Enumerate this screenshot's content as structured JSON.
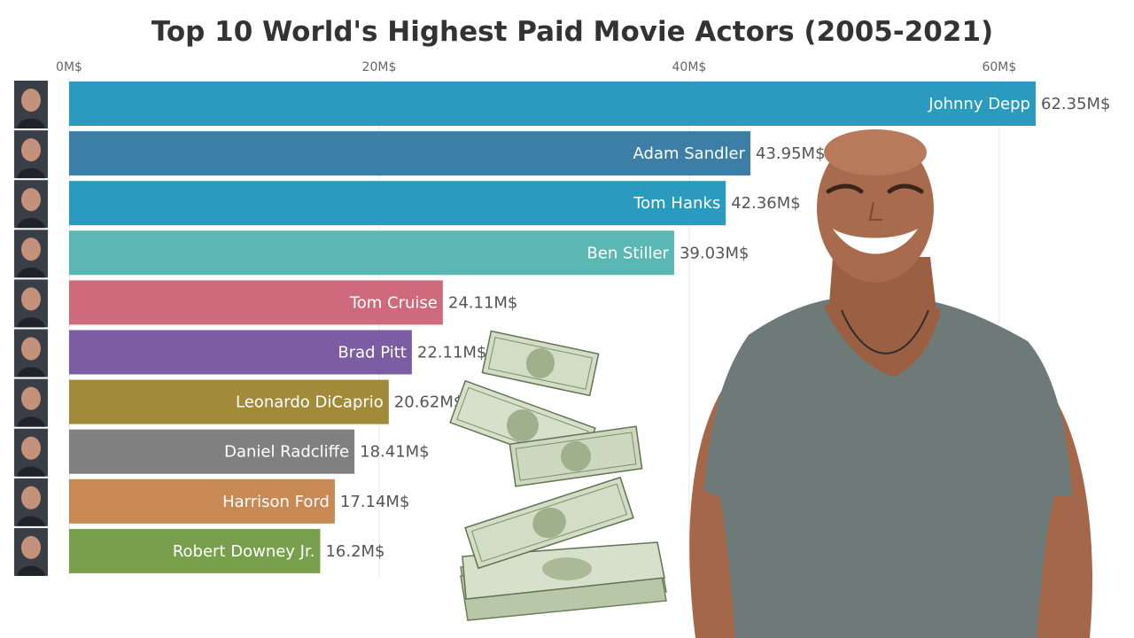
{
  "chart_data": {
    "type": "bar",
    "orientation": "horizontal",
    "title": "Top 10 World's Highest Paid Movie Actors (2005-2021)",
    "xlabel": "",
    "ylabel": "",
    "x_ticks": [
      "0M$",
      "20M$",
      "40M$",
      "60M$"
    ],
    "x_tick_values": [
      0,
      20,
      40,
      60
    ],
    "xlim": [
      0,
      62.35
    ],
    "grid": true,
    "value_suffix": "M$",
    "categories": [
      "Johnny Depp",
      "Adam Sandler",
      "Tom Hanks",
      "Ben Stiller",
      "Tom Cruise",
      "Brad Pitt",
      "Leonardo DiCaprio",
      "Daniel Radcliffe",
      "Harrison Ford",
      "Robert Downey Jr."
    ],
    "values": [
      62.35,
      43.95,
      42.36,
      39.03,
      24.11,
      22.11,
      20.62,
      18.41,
      17.14,
      16.2
    ],
    "value_labels": [
      "62.35M$",
      "43.95M$",
      "42.36M$",
      "39.03M$",
      "24.11M$",
      "22.11M$",
      "20.62M$",
      "18.41M$",
      "17.14M$",
      "16.2M$"
    ],
    "colors": [
      "#2a9bbf",
      "#3d7ea6",
      "#2a9bbf",
      "#5ab7b4",
      "#cf6a7d",
      "#7c5da3",
      "#a28a3b",
      "#808080",
      "#c88955",
      "#78a04c"
    ]
  },
  "images": {
    "actor_photos": [
      "johnny-depp-avatar",
      "adam-sandler-avatar",
      "tom-hanks-avatar",
      "ben-stiller-avatar",
      "tom-cruise-avatar",
      "brad-pitt-avatar",
      "leonardo-dicaprio-avatar",
      "daniel-radcliffe-avatar",
      "harrison-ford-avatar",
      "robert-downey-jr-avatar"
    ],
    "overlays": [
      "flying-money-image",
      "man-in-grey-tshirt-image"
    ]
  }
}
